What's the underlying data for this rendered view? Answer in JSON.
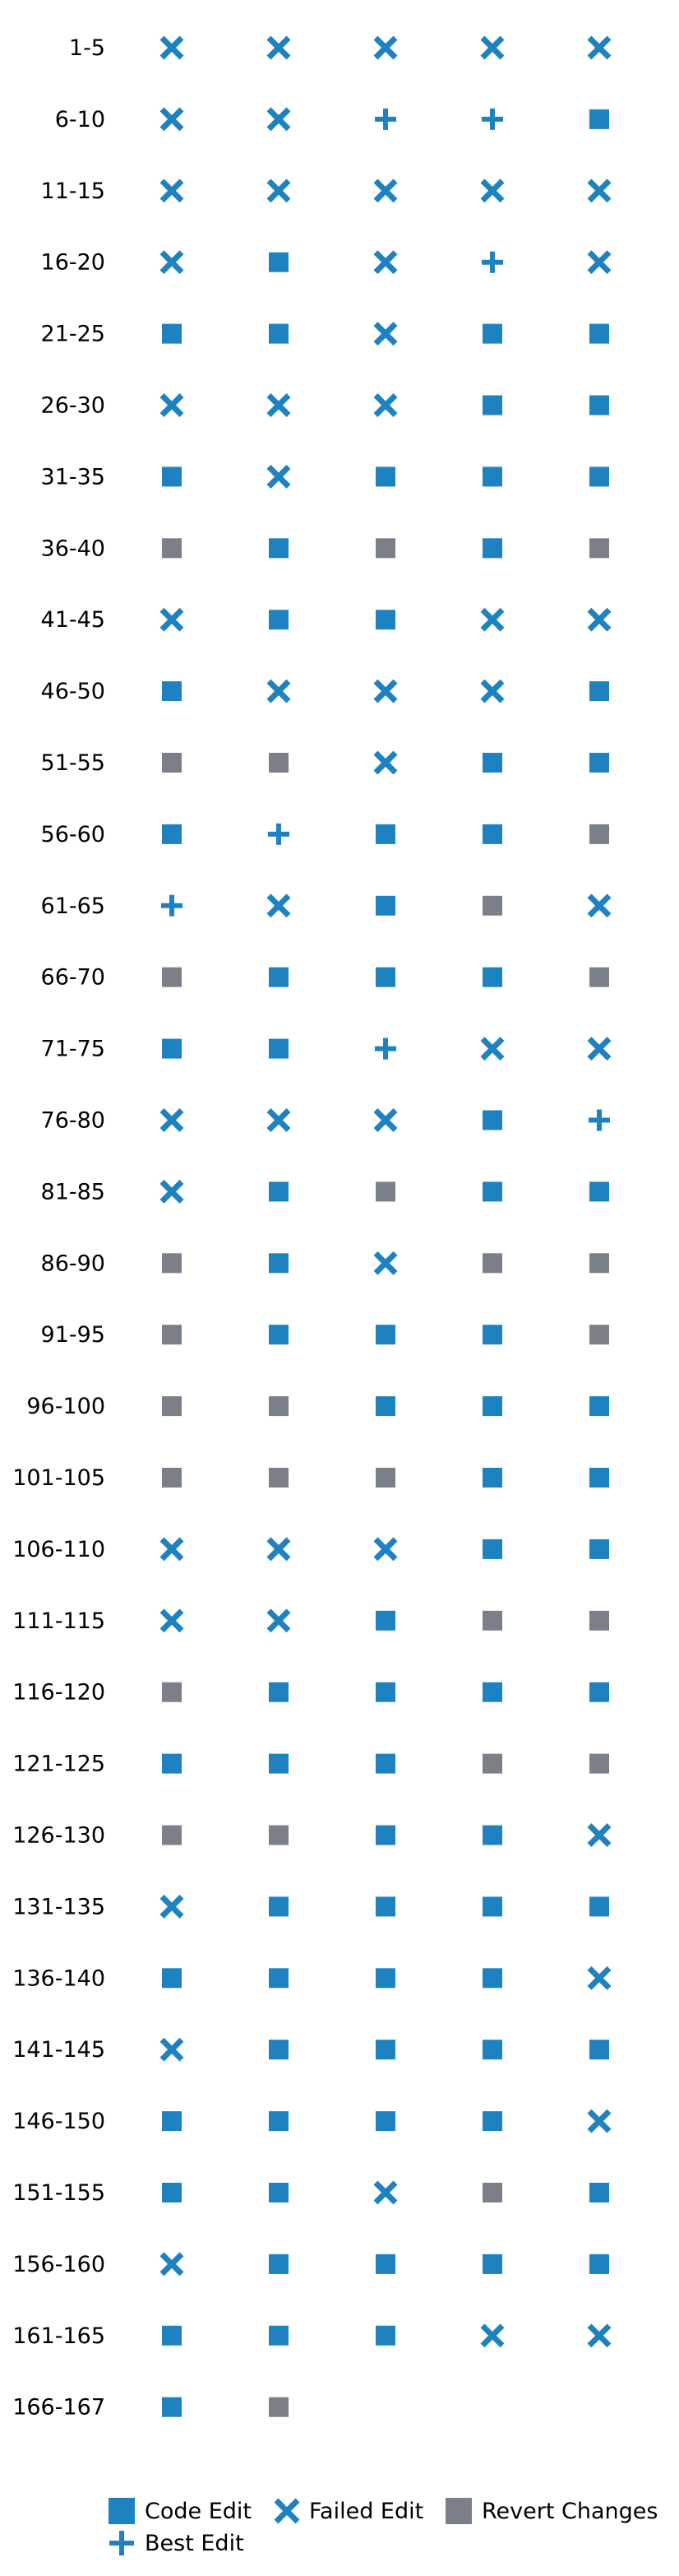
{
  "chart_data": {
    "type": "scatter",
    "title": "",
    "xlabel": "",
    "ylabel": "",
    "grid": false,
    "legend_placement": "bottom",
    "colors": {
      "code_edit": "#1f82c0",
      "failed_edit": "#1f82c0",
      "best_edit": "#1f82c0",
      "revert_changes": "#7b8088"
    },
    "legend": [
      {
        "key": "code_edit",
        "label": "Code Edit",
        "marker": "square"
      },
      {
        "key": "failed_edit",
        "label": "Failed Edit",
        "marker": "x"
      },
      {
        "key": "revert_changes",
        "label": "Revert Changes",
        "marker": "square"
      },
      {
        "key": "best_edit",
        "label": "Best Edit",
        "marker": "plus"
      }
    ],
    "rows": [
      {
        "label": "1-5",
        "cells": [
          "failed_edit",
          "failed_edit",
          "failed_edit",
          "failed_edit",
          "failed_edit"
        ]
      },
      {
        "label": "6-10",
        "cells": [
          "failed_edit",
          "failed_edit",
          "best_edit",
          "best_edit",
          "code_edit"
        ]
      },
      {
        "label": "11-15",
        "cells": [
          "failed_edit",
          "failed_edit",
          "failed_edit",
          "failed_edit",
          "failed_edit"
        ]
      },
      {
        "label": "16-20",
        "cells": [
          "failed_edit",
          "code_edit",
          "failed_edit",
          "best_edit",
          "failed_edit"
        ]
      },
      {
        "label": "21-25",
        "cells": [
          "code_edit",
          "code_edit",
          "failed_edit",
          "code_edit",
          "code_edit"
        ]
      },
      {
        "label": "26-30",
        "cells": [
          "failed_edit",
          "failed_edit",
          "failed_edit",
          "code_edit",
          "code_edit"
        ]
      },
      {
        "label": "31-35",
        "cells": [
          "code_edit",
          "failed_edit",
          "code_edit",
          "code_edit",
          "code_edit"
        ]
      },
      {
        "label": "36-40",
        "cells": [
          "revert_changes",
          "code_edit",
          "revert_changes",
          "code_edit",
          "revert_changes"
        ]
      },
      {
        "label": "41-45",
        "cells": [
          "failed_edit",
          "code_edit",
          "code_edit",
          "failed_edit",
          "failed_edit"
        ]
      },
      {
        "label": "46-50",
        "cells": [
          "code_edit",
          "failed_edit",
          "failed_edit",
          "failed_edit",
          "code_edit"
        ]
      },
      {
        "label": "51-55",
        "cells": [
          "revert_changes",
          "revert_changes",
          "failed_edit",
          "code_edit",
          "code_edit"
        ]
      },
      {
        "label": "56-60",
        "cells": [
          "code_edit",
          "best_edit",
          "code_edit",
          "code_edit",
          "revert_changes"
        ]
      },
      {
        "label": "61-65",
        "cells": [
          "best_edit",
          "failed_edit",
          "code_edit",
          "revert_changes",
          "failed_edit"
        ]
      },
      {
        "label": "66-70",
        "cells": [
          "revert_changes",
          "code_edit",
          "code_edit",
          "code_edit",
          "revert_changes"
        ]
      },
      {
        "label": "71-75",
        "cells": [
          "code_edit",
          "code_edit",
          "best_edit",
          "failed_edit",
          "failed_edit"
        ]
      },
      {
        "label": "76-80",
        "cells": [
          "failed_edit",
          "failed_edit",
          "failed_edit",
          "code_edit",
          "best_edit"
        ]
      },
      {
        "label": "81-85",
        "cells": [
          "failed_edit",
          "code_edit",
          "revert_changes",
          "code_edit",
          "code_edit"
        ]
      },
      {
        "label": "86-90",
        "cells": [
          "revert_changes",
          "code_edit",
          "failed_edit",
          "revert_changes",
          "revert_changes"
        ]
      },
      {
        "label": "91-95",
        "cells": [
          "revert_changes",
          "code_edit",
          "code_edit",
          "code_edit",
          "revert_changes"
        ]
      },
      {
        "label": "96-100",
        "cells": [
          "revert_changes",
          "revert_changes",
          "code_edit",
          "code_edit",
          "code_edit"
        ]
      },
      {
        "label": "101-105",
        "cells": [
          "revert_changes",
          "revert_changes",
          "revert_changes",
          "code_edit",
          "code_edit"
        ]
      },
      {
        "label": "106-110",
        "cells": [
          "failed_edit",
          "failed_edit",
          "failed_edit",
          "code_edit",
          "code_edit"
        ]
      },
      {
        "label": "111-115",
        "cells": [
          "failed_edit",
          "failed_edit",
          "code_edit",
          "revert_changes",
          "revert_changes"
        ]
      },
      {
        "label": "116-120",
        "cells": [
          "revert_changes",
          "code_edit",
          "code_edit",
          "code_edit",
          "code_edit"
        ]
      },
      {
        "label": "121-125",
        "cells": [
          "code_edit",
          "code_edit",
          "code_edit",
          "revert_changes",
          "revert_changes"
        ]
      },
      {
        "label": "126-130",
        "cells": [
          "revert_changes",
          "revert_changes",
          "code_edit",
          "code_edit",
          "failed_edit"
        ]
      },
      {
        "label": "131-135",
        "cells": [
          "failed_edit",
          "code_edit",
          "code_edit",
          "code_edit",
          "code_edit"
        ]
      },
      {
        "label": "136-140",
        "cells": [
          "code_edit",
          "code_edit",
          "code_edit",
          "code_edit",
          "failed_edit"
        ]
      },
      {
        "label": "141-145",
        "cells": [
          "failed_edit",
          "code_edit",
          "code_edit",
          "code_edit",
          "code_edit"
        ]
      },
      {
        "label": "146-150",
        "cells": [
          "code_edit",
          "code_edit",
          "code_edit",
          "code_edit",
          "failed_edit"
        ]
      },
      {
        "label": "151-155",
        "cells": [
          "code_edit",
          "code_edit",
          "failed_edit",
          "revert_changes",
          "code_edit"
        ]
      },
      {
        "label": "156-160",
        "cells": [
          "failed_edit",
          "code_edit",
          "code_edit",
          "code_edit",
          "code_edit"
        ]
      },
      {
        "label": "161-165",
        "cells": [
          "code_edit",
          "code_edit",
          "code_edit",
          "failed_edit",
          "failed_edit"
        ]
      },
      {
        "label": "166-167",
        "cells": [
          "code_edit",
          "revert_changes"
        ]
      }
    ]
  }
}
